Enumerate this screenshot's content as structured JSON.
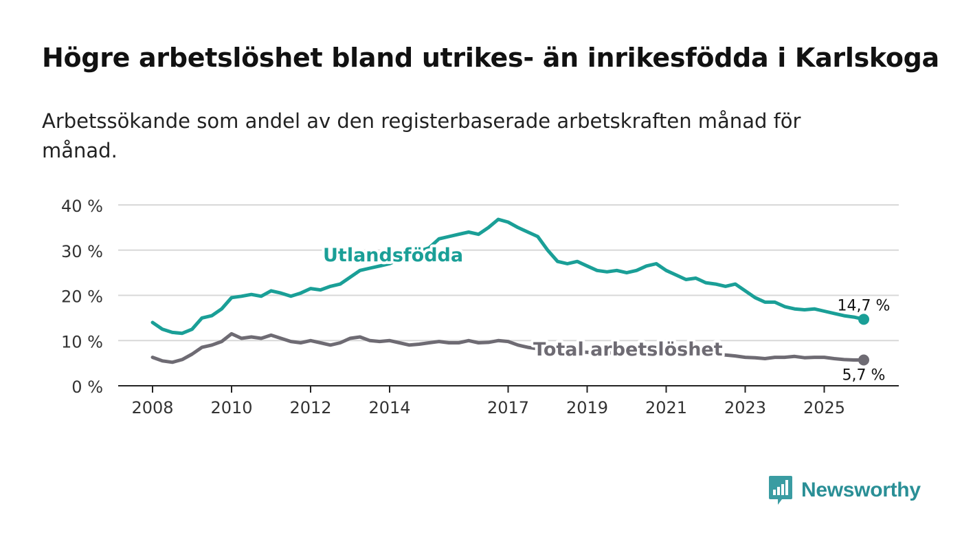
{
  "header": {
    "title": "Högre arbetslöshet bland utrikes- än inrikesfödda i Karlskoga",
    "subtitle": "Arbetssökande som andel av den registerbaserade arbetskraften månad för månad."
  },
  "branding": {
    "name": "Newsworthy"
  },
  "colors": {
    "foreign_born": "#1a9f97",
    "total": "#6e6b73",
    "grid": "#d8d8d8",
    "axis": "#222222"
  },
  "chart_data": {
    "type": "line",
    "title": "Högre arbetslöshet bland utrikes- än inrikesfödda i Karlskoga",
    "xlabel": "",
    "ylabel": "",
    "xlim": [
      2008,
      2026.2
    ],
    "ylim": [
      0,
      40
    ],
    "grid": true,
    "x_ticks": [
      2008,
      2010,
      2012,
      2014,
      2017,
      2019,
      2021,
      2023,
      2025
    ],
    "x_tick_labels": [
      "2008",
      "2010",
      "2012",
      "2014",
      "2017",
      "2019",
      "2021",
      "2023",
      "2025"
    ],
    "y_ticks": [
      0,
      10,
      20,
      30,
      40
    ],
    "y_tick_labels": [
      "0 %",
      "10 %",
      "20 %",
      "30 %",
      "40 %"
    ],
    "series": [
      {
        "name": "Utlandsfödda",
        "label_text": "Utlandsfödda",
        "end_label": "14,7 %",
        "points": [
          [
            2008.0,
            14.0
          ],
          [
            2008.25,
            12.5
          ],
          [
            2008.5,
            11.8
          ],
          [
            2008.75,
            11.6
          ],
          [
            2009.0,
            12.5
          ],
          [
            2009.25,
            15.0
          ],
          [
            2009.5,
            15.5
          ],
          [
            2009.75,
            17.0
          ],
          [
            2010.0,
            19.5
          ],
          [
            2010.25,
            19.8
          ],
          [
            2010.5,
            20.2
          ],
          [
            2010.75,
            19.8
          ],
          [
            2011.0,
            21.0
          ],
          [
            2011.25,
            20.5
          ],
          [
            2011.5,
            19.8
          ],
          [
            2011.75,
            20.5
          ],
          [
            2012.0,
            21.5
          ],
          [
            2012.25,
            21.2
          ],
          [
            2012.5,
            22.0
          ],
          [
            2012.75,
            22.5
          ],
          [
            2013.0,
            24.0
          ],
          [
            2013.25,
            25.5
          ],
          [
            2013.5,
            26.0
          ],
          [
            2013.75,
            26.5
          ],
          [
            2014.0,
            27.0
          ],
          [
            2014.25,
            28.0
          ],
          [
            2014.5,
            29.0
          ],
          [
            2014.75,
            29.8
          ],
          [
            2015.0,
            30.5
          ],
          [
            2015.25,
            32.5
          ],
          [
            2015.5,
            33.0
          ],
          [
            2015.75,
            33.5
          ],
          [
            2016.0,
            34.0
          ],
          [
            2016.25,
            33.5
          ],
          [
            2016.5,
            35.0
          ],
          [
            2016.75,
            36.8
          ],
          [
            2017.0,
            36.2
          ],
          [
            2017.25,
            35.0
          ],
          [
            2017.5,
            34.0
          ],
          [
            2017.75,
            33.0
          ],
          [
            2018.0,
            30.0
          ],
          [
            2018.25,
            27.5
          ],
          [
            2018.5,
            27.0
          ],
          [
            2018.75,
            27.5
          ],
          [
            2019.0,
            26.5
          ],
          [
            2019.25,
            25.5
          ],
          [
            2019.5,
            25.2
          ],
          [
            2019.75,
            25.5
          ],
          [
            2020.0,
            25.0
          ],
          [
            2020.25,
            25.5
          ],
          [
            2020.5,
            26.5
          ],
          [
            2020.75,
            27.0
          ],
          [
            2021.0,
            25.5
          ],
          [
            2021.25,
            24.5
          ],
          [
            2021.5,
            23.5
          ],
          [
            2021.75,
            23.8
          ],
          [
            2022.0,
            22.8
          ],
          [
            2022.25,
            22.5
          ],
          [
            2022.5,
            22.0
          ],
          [
            2022.75,
            22.5
          ],
          [
            2023.0,
            21.0
          ],
          [
            2023.25,
            19.5
          ],
          [
            2023.5,
            18.5
          ],
          [
            2023.75,
            18.5
          ],
          [
            2024.0,
            17.5
          ],
          [
            2024.25,
            17.0
          ],
          [
            2024.5,
            16.8
          ],
          [
            2024.75,
            17.0
          ],
          [
            2025.0,
            16.5
          ],
          [
            2025.25,
            16.0
          ],
          [
            2025.5,
            15.5
          ],
          [
            2025.75,
            15.2
          ],
          [
            2026.0,
            14.7
          ]
        ]
      },
      {
        "name": "Total arbetslöshet",
        "label_text": "Total arbetslöshet",
        "end_label": "5,7 %",
        "points": [
          [
            2008.0,
            6.3
          ],
          [
            2008.25,
            5.5
          ],
          [
            2008.5,
            5.2
          ],
          [
            2008.75,
            5.8
          ],
          [
            2009.0,
            7.0
          ],
          [
            2009.25,
            8.5
          ],
          [
            2009.5,
            9.0
          ],
          [
            2009.75,
            9.8
          ],
          [
            2010.0,
            11.5
          ],
          [
            2010.25,
            10.5
          ],
          [
            2010.5,
            10.8
          ],
          [
            2010.75,
            10.5
          ],
          [
            2011.0,
            11.2
          ],
          [
            2011.25,
            10.5
          ],
          [
            2011.5,
            9.8
          ],
          [
            2011.75,
            9.5
          ],
          [
            2012.0,
            10.0
          ],
          [
            2012.25,
            9.5
          ],
          [
            2012.5,
            9.0
          ],
          [
            2012.75,
            9.5
          ],
          [
            2013.0,
            10.5
          ],
          [
            2013.25,
            10.8
          ],
          [
            2013.5,
            10.0
          ],
          [
            2013.75,
            9.8
          ],
          [
            2014.0,
            10.0
          ],
          [
            2014.25,
            9.5
          ],
          [
            2014.5,
            9.0
          ],
          [
            2014.75,
            9.2
          ],
          [
            2015.0,
            9.5
          ],
          [
            2015.25,
            9.8
          ],
          [
            2015.5,
            9.5
          ],
          [
            2015.75,
            9.5
          ],
          [
            2016.0,
            10.0
          ],
          [
            2016.25,
            9.5
          ],
          [
            2016.5,
            9.6
          ],
          [
            2016.75,
            10.0
          ],
          [
            2017.0,
            9.8
          ],
          [
            2017.25,
            9.0
          ],
          [
            2017.5,
            8.5
          ],
          [
            2017.75,
            8.2
          ],
          [
            2018.0,
            8.0
          ],
          [
            2018.25,
            7.8
          ],
          [
            2018.5,
            7.7
          ],
          [
            2018.75,
            7.5
          ],
          [
            2019.0,
            7.4
          ],
          [
            2019.25,
            7.2
          ],
          [
            2019.5,
            7.2
          ],
          [
            2019.75,
            7.4
          ],
          [
            2020.0,
            7.6
          ],
          [
            2020.25,
            7.8
          ],
          [
            2020.5,
            7.7
          ],
          [
            2020.75,
            7.5
          ],
          [
            2021.0,
            7.4
          ],
          [
            2021.25,
            7.3
          ],
          [
            2021.5,
            7.2
          ],
          [
            2021.75,
            7.0
          ],
          [
            2022.0,
            6.9
          ],
          [
            2022.25,
            6.8
          ],
          [
            2022.5,
            6.8
          ],
          [
            2022.75,
            6.6
          ],
          [
            2023.0,
            6.3
          ],
          [
            2023.25,
            6.2
          ],
          [
            2023.5,
            6.0
          ],
          [
            2023.75,
            6.3
          ],
          [
            2024.0,
            6.3
          ],
          [
            2024.25,
            6.5
          ],
          [
            2024.5,
            6.2
          ],
          [
            2024.75,
            6.3
          ],
          [
            2025.0,
            6.3
          ],
          [
            2025.25,
            6.0
          ],
          [
            2025.5,
            5.8
          ],
          [
            2025.75,
            5.7
          ],
          [
            2026.0,
            5.7
          ]
        ]
      }
    ]
  }
}
